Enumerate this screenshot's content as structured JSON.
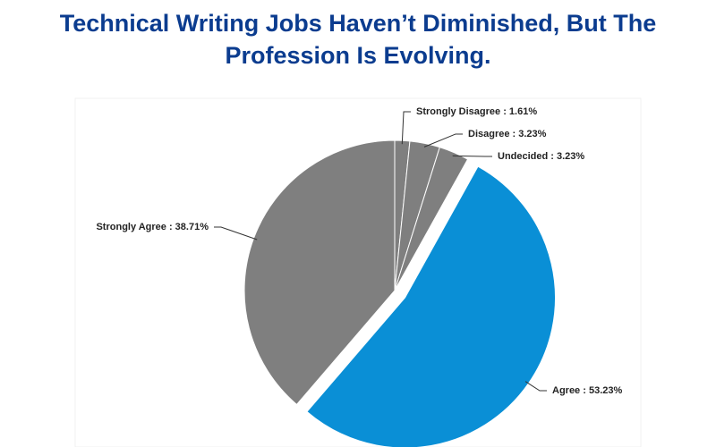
{
  "chart_data": {
    "type": "pie",
    "title": "Technical Writing Jobs Haven’t Diminished, But The Profession Is Evolving.",
    "values": [
      1.61,
      3.23,
      3.23,
      53.23,
      38.71
    ],
    "value_labels": [
      "Strongly Disagree : 1.61%",
      "Disagree : 3.23%",
      "Undecided : 3.23%",
      "Agree : 53.23%",
      "Strongly Agree : 38.71%"
    ],
    "colors": [
      "#7f7f7f",
      "#7f7f7f",
      "#7f7f7f",
      "#0a8fd6",
      "#7f7f7f"
    ],
    "exploded": [
      false,
      false,
      false,
      true,
      false
    ]
  }
}
